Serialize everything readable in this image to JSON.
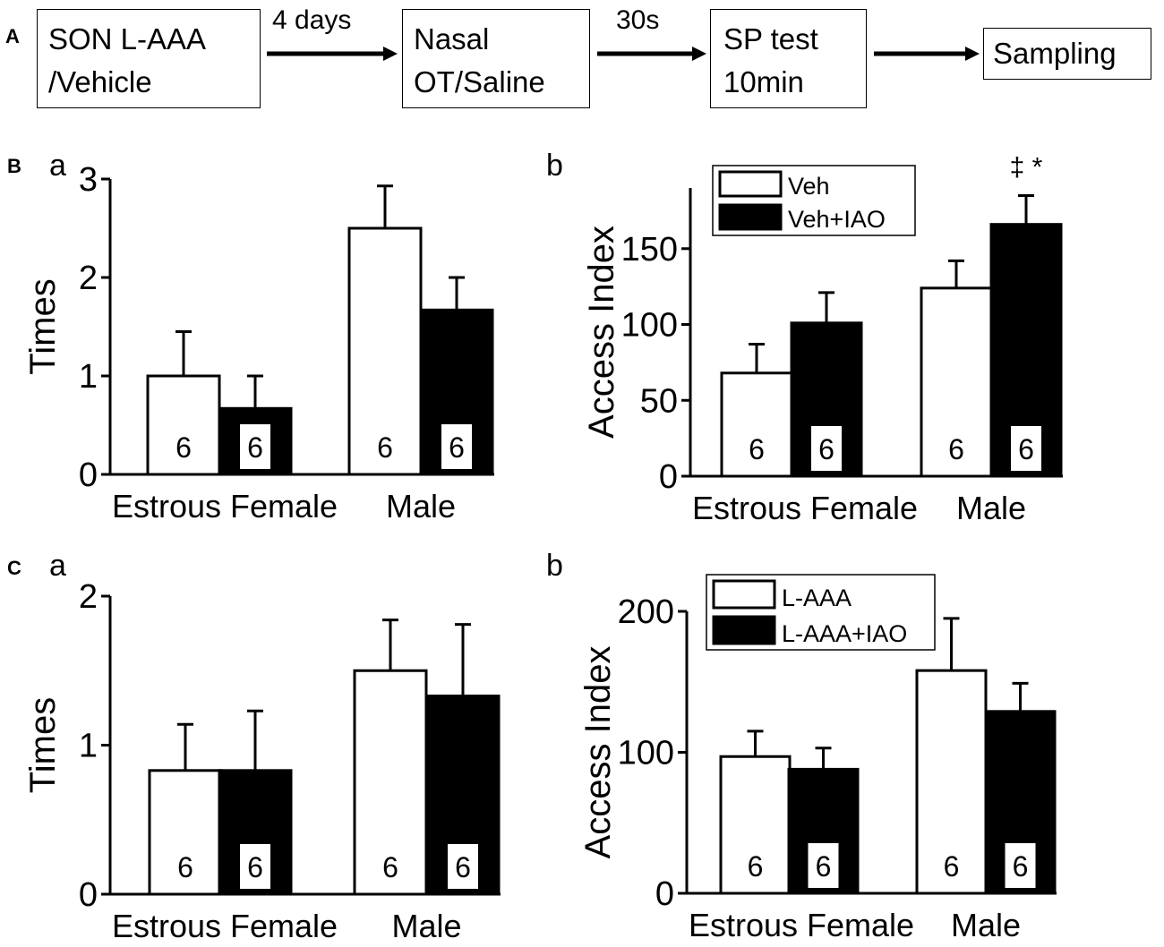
{
  "flow": {
    "panel_label": "A",
    "steps": [
      "SON L-AAA",
      "/Vehicle",
      "Nasal",
      "OT/Saline",
      "SP test",
      "10min",
      "Sampling"
    ],
    "arrows": [
      "4 days",
      "30s",
      ""
    ]
  },
  "panels": {
    "B": {
      "label": "B"
    },
    "C": {
      "label": "C"
    }
  },
  "chart_data": [
    {
      "id": "Ba",
      "panel": "B",
      "sublabel": "a",
      "type": "bar",
      "title": "",
      "xlabel": "",
      "ylabel": "Times",
      "ylim": [
        0,
        3
      ],
      "yticks": [
        "0",
        "1",
        "2",
        "3"
      ],
      "categories": [
        "Estrous Female",
        "Male"
      ],
      "series": [
        {
          "name": "Veh",
          "fill": "#ffffff",
          "values": [
            1.0,
            2.5
          ],
          "errors": [
            0.45,
            0.43
          ],
          "n": [
            "6",
            "6"
          ]
        },
        {
          "name": "Veh+IAO",
          "fill": "#000000",
          "values": [
            0.67,
            1.67
          ],
          "errors": [
            0.33,
            0.33
          ],
          "n": [
            "6",
            "6"
          ]
        }
      ],
      "legend": null,
      "annotation": ""
    },
    {
      "id": "Bb",
      "panel": "B",
      "sublabel": "b",
      "type": "bar",
      "title": "",
      "xlabel": "",
      "ylabel": "Access Index",
      "ylim": [
        0,
        190
      ],
      "yticks": [
        "0",
        "50",
        "100",
        "150"
      ],
      "categories": [
        "Estrous Female",
        "Male"
      ],
      "series": [
        {
          "name": "Veh",
          "fill": "#ffffff",
          "values": [
            68,
            124
          ],
          "errors": [
            19,
            18
          ],
          "n": [
            "6",
            "6"
          ]
        },
        {
          "name": "Veh+IAO",
          "fill": "#000000",
          "values": [
            101,
            166
          ],
          "errors": [
            20,
            19
          ],
          "n": [
            "6",
            "6"
          ]
        }
      ],
      "legend": [
        "Veh",
        "Veh+IAO"
      ],
      "annotation": "‡ *"
    },
    {
      "id": "Ca",
      "panel": "C",
      "sublabel": "a",
      "type": "bar",
      "title": "",
      "xlabel": "",
      "ylabel": "Times",
      "ylim": [
        0,
        2
      ],
      "yticks": [
        "0",
        "1",
        "2"
      ],
      "categories": [
        "Estrous Female",
        "Male"
      ],
      "series": [
        {
          "name": "L-AAA",
          "fill": "#ffffff",
          "values": [
            0.83,
            1.5
          ],
          "errors": [
            0.31,
            0.34
          ],
          "n": [
            "6",
            "6"
          ]
        },
        {
          "name": "L-AAA+IAO",
          "fill": "#000000",
          "values": [
            0.83,
            1.33
          ],
          "errors": [
            0.4,
            0.48
          ],
          "n": [
            "6",
            "6"
          ]
        }
      ],
      "legend": null,
      "annotation": ""
    },
    {
      "id": "Cb",
      "panel": "C",
      "sublabel": "b",
      "type": "bar",
      "title": "",
      "xlabel": "",
      "ylabel": "Access Index",
      "ylim": [
        0,
        200
      ],
      "yticks": [
        "0",
        "100",
        "200"
      ],
      "categories": [
        "Estrous Female",
        "Male"
      ],
      "series": [
        {
          "name": "L-AAA",
          "fill": "#ffffff",
          "values": [
            97,
            158
          ],
          "errors": [
            18,
            37
          ],
          "n": [
            "6",
            "6"
          ]
        },
        {
          "name": "L-AAA+IAO",
          "fill": "#000000",
          "values": [
            88,
            129
          ],
          "errors": [
            15,
            20
          ],
          "n": [
            "6",
            "6"
          ]
        }
      ],
      "legend": [
        "L-AAA",
        "L-AAA+IAO"
      ],
      "annotation": ""
    }
  ]
}
